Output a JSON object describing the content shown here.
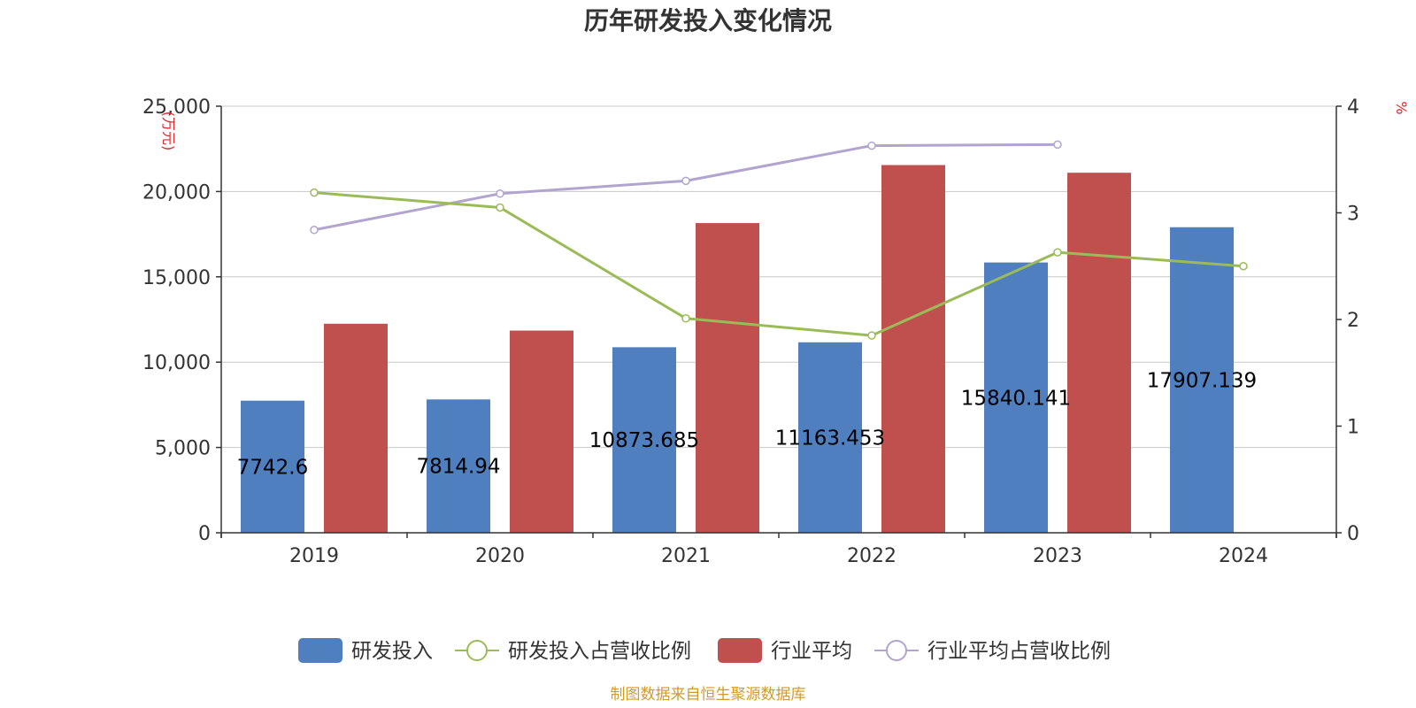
{
  "title": "历年研发投入变化情况",
  "source": "制图数据来自恒生聚源数据库",
  "colors": {
    "rd": "#4f7fbe",
    "industry": "#c0504d",
    "rd_ratio": "#9bbb59",
    "industry_ratio": "#b3a4cf",
    "grid": "#c8c8c8",
    "axis": "#333333",
    "unit": "#e0262b",
    "source": "#d29a2a"
  },
  "chart_data": {
    "type": "bar",
    "title": "历年研发投入变化情况",
    "categories": [
      "2019",
      "2020",
      "2021",
      "2022",
      "2023",
      "2024"
    ],
    "y_left": {
      "label": "(万元)",
      "min": 0,
      "max": 25000,
      "interval": 5000,
      "ticks": [
        "0",
        "5,000",
        "10,000",
        "15,000",
        "20,000",
        "25,000"
      ]
    },
    "y_right": {
      "label": "%",
      "min": 0,
      "max": 4,
      "interval": 1,
      "ticks": [
        "0",
        "1",
        "2",
        "3",
        "4"
      ]
    },
    "series": [
      {
        "name": "研发投入",
        "type": "bar",
        "axis": "left",
        "values": [
          7742.6,
          7814.94,
          10873.685,
          11163.453,
          15840.141,
          17907.139
        ],
        "labels": [
          "7742.6",
          "7814.94",
          "10873.685",
          "11163.453",
          "15840.141",
          "17907.139"
        ]
      },
      {
        "name": "研发投入占营收比例",
        "type": "line",
        "axis": "right",
        "values": [
          3.19,
          3.05,
          2.01,
          1.85,
          2.63,
          2.5
        ]
      },
      {
        "name": "行业平均",
        "type": "bar",
        "axis": "left",
        "values": [
          12250,
          11850,
          18150,
          21550,
          21100,
          null
        ]
      },
      {
        "name": "行业平均占营收比例",
        "type": "line",
        "axis": "right",
        "values": [
          2.84,
          3.18,
          3.3,
          3.63,
          3.64,
          null
        ]
      }
    ],
    "legend": [
      "研发投入",
      "研发投入占营收比例",
      "行业平均",
      "行业平均占营收比例"
    ],
    "legend_position": "bottom",
    "grid": true
  }
}
